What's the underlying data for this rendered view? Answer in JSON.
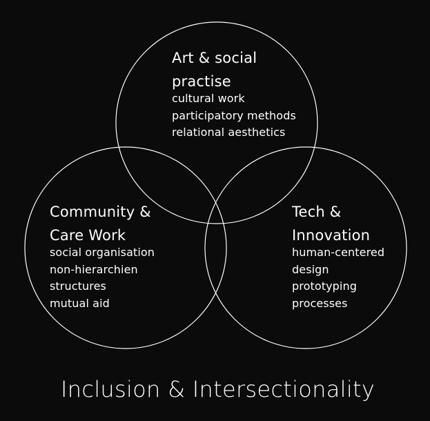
{
  "diagram": {
    "circles": [
      {
        "id": "art",
        "title_lines": [
          "Art & social",
          "practise"
        ],
        "items": [
          "cultural work",
          "participatory methods",
          "relational aesthetics"
        ]
      },
      {
        "id": "community",
        "title_lines": [
          "Community &",
          "Care Work"
        ],
        "items": [
          "social organisation",
          "non-hierarchien",
          "structures",
          "mutual aid"
        ]
      },
      {
        "id": "tech",
        "title_lines": [
          "Tech &",
          "Innovation"
        ],
        "items": [
          "human-centered",
          "design",
          "prototyping",
          "processes"
        ]
      }
    ],
    "footer": "Inclusion & Intersectionality",
    "colors": {
      "background": "#0b0b0b",
      "stroke": "#ffffff",
      "text": "#ffffff"
    }
  }
}
